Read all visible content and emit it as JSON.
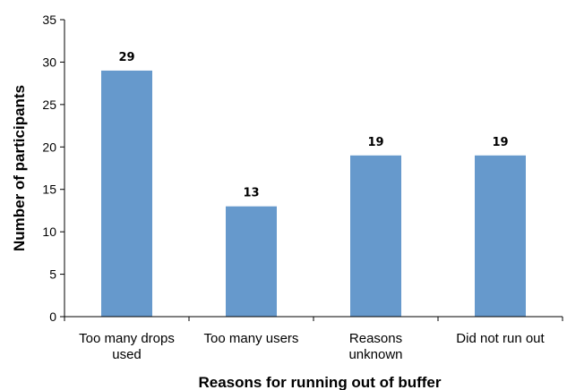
{
  "chart_data": {
    "type": "bar",
    "title": "",
    "xlabel": "Reasons for running out of buffer",
    "ylabel": "Number of participants",
    "categories": [
      [
        "Too many drops",
        "used"
      ],
      [
        "Too many users"
      ],
      [
        "Reasons",
        "unknown"
      ],
      [
        "Did not run out"
      ]
    ],
    "values": [
      29,
      13,
      19,
      19
    ],
    "data_labels": [
      "29",
      "13",
      "19",
      "19"
    ],
    "ylim": [
      0,
      35
    ],
    "yticks": [
      0,
      5,
      10,
      15,
      20,
      25,
      30,
      35
    ],
    "grid": false,
    "legend": "none",
    "bar_color": "#6699cc"
  }
}
